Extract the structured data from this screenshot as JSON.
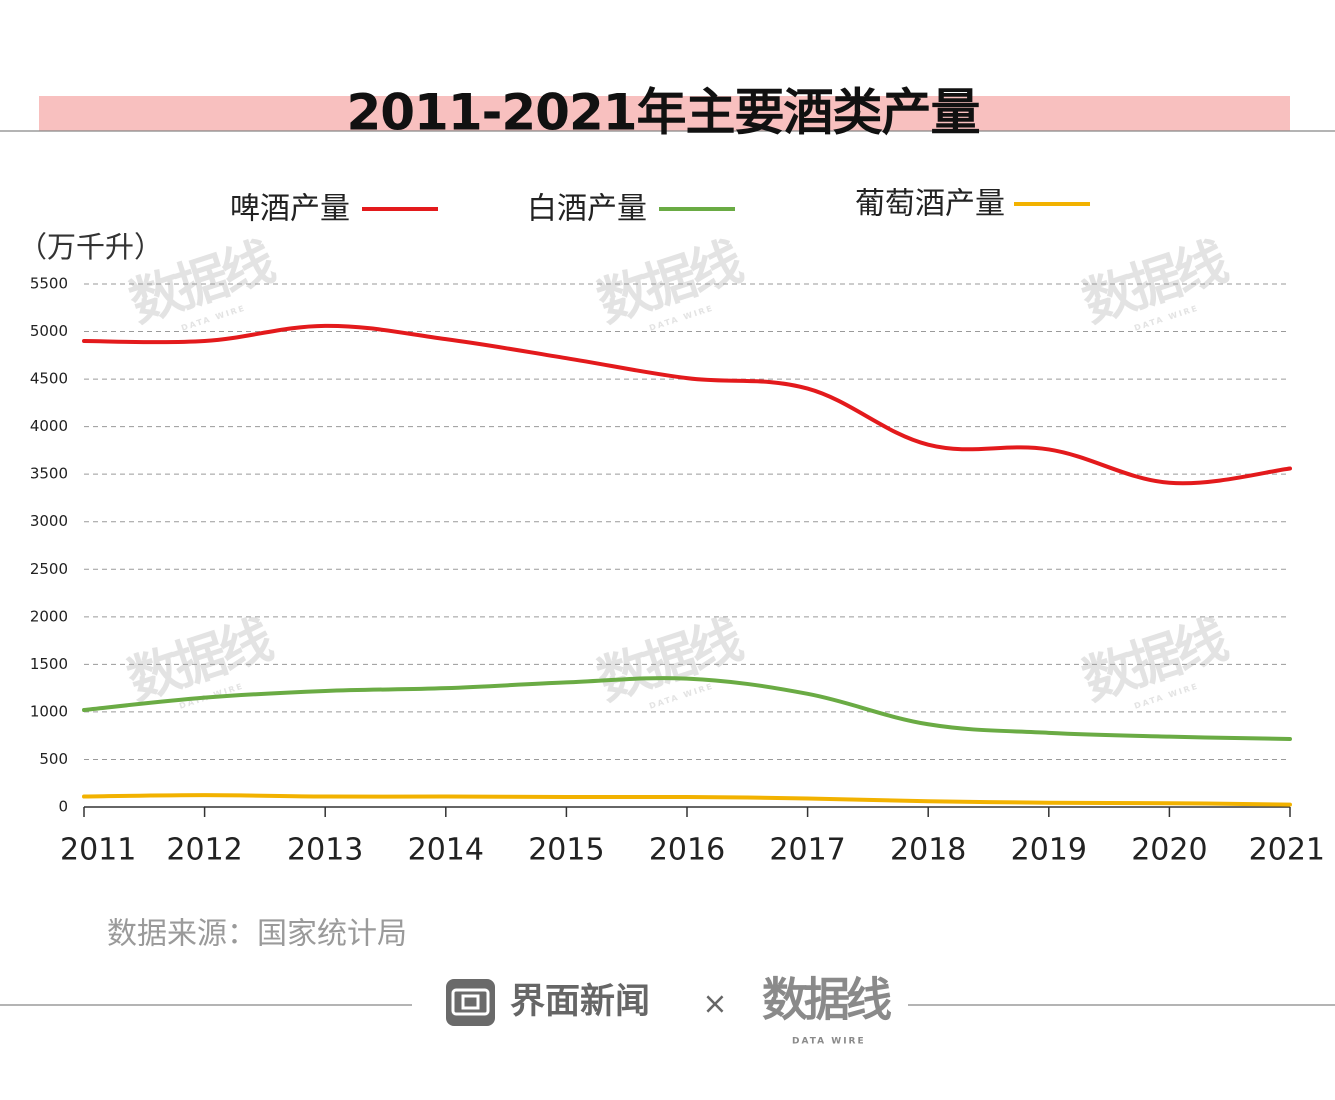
{
  "chart_data": {
    "type": "line",
    "title": "2011-2021年主要酒类产量",
    "unit": "（万千升）",
    "categories": [
      "2011",
      "2012",
      "2013",
      "2014",
      "2015",
      "2016",
      "2017",
      "2018",
      "2019",
      "2020",
      "2021"
    ],
    "yticks": [
      "5500",
      "5000",
      "4500",
      "4000",
      "3500",
      "3000",
      "2500",
      "2000",
      "1500",
      "1000",
      "500",
      "0"
    ],
    "ylim": [
      0,
      5500
    ],
    "grid": true,
    "legend_position": "top",
    "series": [
      {
        "name": "啤酒产量",
        "color": "#e31a1c",
        "values": [
          4900,
          4900,
          5060,
          4920,
          4720,
          4510,
          4400,
          3810,
          3760,
          3410,
          3560
        ]
      },
      {
        "name": "白酒产量",
        "color": "#6aab44",
        "values": [
          1020,
          1150,
          1220,
          1250,
          1310,
          1350,
          1190,
          870,
          780,
          740,
          715
        ]
      },
      {
        "name": "葡萄酒产量",
        "color": "#f2b200",
        "values": [
          110,
          125,
          110,
          110,
          105,
          105,
          90,
          60,
          45,
          40,
          25
        ]
      }
    ],
    "source": "数据来源：国家统计局"
  },
  "footer": {
    "brand": "界面新闻",
    "times": "×",
    "logo": "数据线",
    "logo_sub": "DATA WIRE"
  },
  "colors": {
    "title_band": "#f8c0bf",
    "rule": "#888888"
  },
  "watermark": {
    "text": "数据线",
    "sub": "DATA WIRE"
  }
}
